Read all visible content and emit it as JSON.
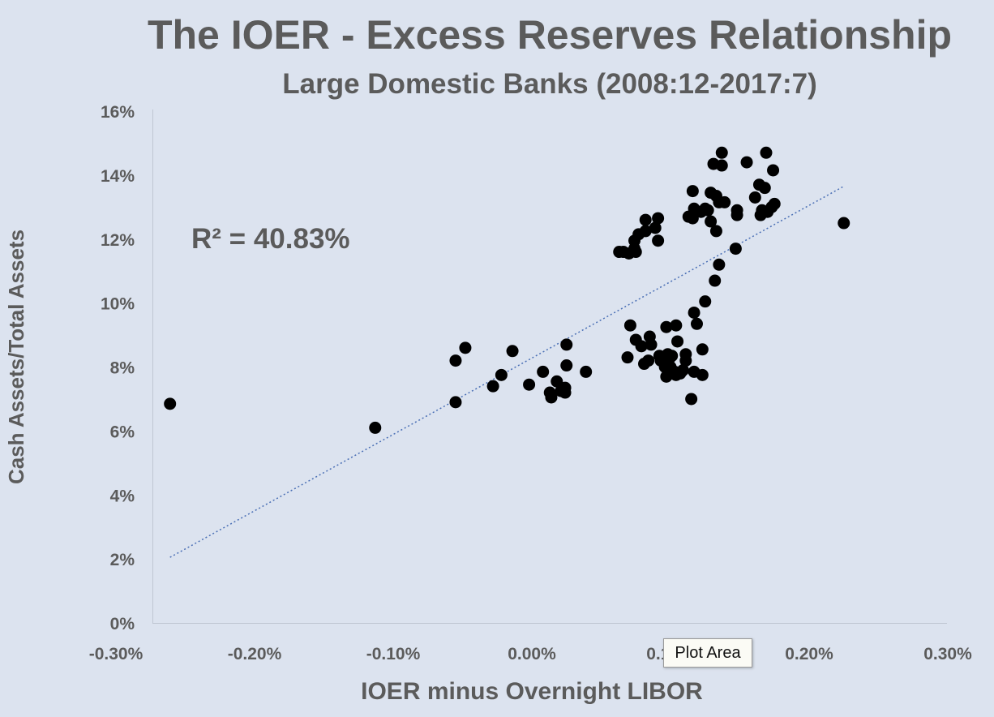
{
  "chart_data": {
    "type": "scatter",
    "title": "The IOER - Excess Reserves Relationship",
    "subtitle": "Large Domestic Banks (2008:12-2017:7)",
    "xlabel": "IOER minus Overnight LIBOR",
    "ylabel": "Cash Assets/Total Assets",
    "annotation": "R² = 40.83%",
    "xlim": [
      -0.3,
      0.3
    ],
    "ylim": [
      0,
      16
    ],
    "x_ticks": [
      "-0.30%",
      "-0.20%",
      "-0.10%",
      "0.00%",
      "0.10%",
      "0.20%",
      "0.30%"
    ],
    "y_ticks": [
      "0%",
      "2%",
      "4%",
      "6%",
      "8%",
      "10%",
      "12%",
      "14%",
      "16%"
    ],
    "grid": false,
    "trendline": {
      "style": "dotted",
      "color": "#4a6fb5",
      "x": [
        -0.261,
        0.225
      ],
      "y": [
        2.05,
        13.65
      ]
    },
    "point_color": "#000000",
    "points": [
      [
        -0.261,
        6.85
      ],
      [
        -0.113,
        6.1
      ],
      [
        -0.055,
        8.2
      ],
      [
        -0.055,
        6.9
      ],
      [
        -0.048,
        8.6
      ],
      [
        -0.028,
        7.4
      ],
      [
        -0.022,
        7.75
      ],
      [
        -0.014,
        8.5
      ],
      [
        -0.002,
        7.45
      ],
      [
        0.008,
        7.85
      ],
      [
        0.013,
        7.2
      ],
      [
        0.014,
        7.05
      ],
      [
        0.018,
        7.55
      ],
      [
        0.021,
        7.25
      ],
      [
        0.024,
        7.35
      ],
      [
        0.024,
        7.2
      ],
      [
        0.025,
        8.05
      ],
      [
        0.025,
        8.7
      ],
      [
        0.039,
        7.85
      ],
      [
        0.063,
        11.6
      ],
      [
        0.066,
        11.6
      ],
      [
        0.069,
        8.3
      ],
      [
        0.07,
        11.55
      ],
      [
        0.071,
        9.3
      ],
      [
        0.074,
        11.7
      ],
      [
        0.074,
        11.95
      ],
      [
        0.075,
        11.6
      ],
      [
        0.075,
        8.85
      ],
      [
        0.077,
        12.15
      ],
      [
        0.079,
        8.65
      ],
      [
        0.081,
        8.1
      ],
      [
        0.082,
        12.25
      ],
      [
        0.082,
        12.6
      ],
      [
        0.084,
        8.2
      ],
      [
        0.085,
        8.95
      ],
      [
        0.086,
        8.7
      ],
      [
        0.089,
        12.35
      ],
      [
        0.091,
        12.65
      ],
      [
        0.091,
        11.95
      ],
      [
        0.092,
        8.35
      ],
      [
        0.093,
        8.2
      ],
      [
        0.096,
        8.0
      ],
      [
        0.097,
        9.25
      ],
      [
        0.097,
        7.7
      ],
      [
        0.098,
        8.4
      ],
      [
        0.099,
        8.25
      ],
      [
        0.1,
        8.0
      ],
      [
        0.101,
        8.35
      ],
      [
        0.103,
        7.85
      ],
      [
        0.104,
        7.75
      ],
      [
        0.104,
        9.3
      ],
      [
        0.105,
        8.8
      ],
      [
        0.107,
        7.8
      ],
      [
        0.109,
        7.9
      ],
      [
        0.111,
        8.2
      ],
      [
        0.111,
        8.4
      ],
      [
        0.113,
        12.7
      ],
      [
        0.115,
        7.0
      ],
      [
        0.116,
        12.65
      ],
      [
        0.116,
        13.5
      ],
      [
        0.117,
        7.85
      ],
      [
        0.117,
        12.95
      ],
      [
        0.117,
        9.7
      ],
      [
        0.119,
        9.35
      ],
      [
        0.122,
        12.85
      ],
      [
        0.123,
        7.75
      ],
      [
        0.123,
        8.55
      ],
      [
        0.125,
        12.95
      ],
      [
        0.125,
        10.05
      ],
      [
        0.127,
        12.9
      ],
      [
        0.129,
        12.55
      ],
      [
        0.129,
        13.45
      ],
      [
        0.131,
        14.35
      ],
      [
        0.132,
        10.7
      ],
      [
        0.133,
        12.25
      ],
      [
        0.133,
        13.35
      ],
      [
        0.135,
        11.2
      ],
      [
        0.135,
        13.15
      ],
      [
        0.137,
        14.7
      ],
      [
        0.137,
        14.3
      ],
      [
        0.139,
        13.15
      ],
      [
        0.147,
        11.7
      ],
      [
        0.148,
        12.9
      ],
      [
        0.148,
        12.75
      ],
      [
        0.155,
        14.4
      ],
      [
        0.161,
        13.3
      ],
      [
        0.164,
        13.7
      ],
      [
        0.165,
        12.75
      ],
      [
        0.166,
        12.9
      ],
      [
        0.168,
        13.6
      ],
      [
        0.169,
        14.7
      ],
      [
        0.17,
        12.85
      ],
      [
        0.173,
        13.0
      ],
      [
        0.174,
        14.15
      ],
      [
        0.175,
        13.1
      ],
      [
        0.225,
        12.5
      ]
    ]
  },
  "tooltip": {
    "label": "Plot Area"
  }
}
